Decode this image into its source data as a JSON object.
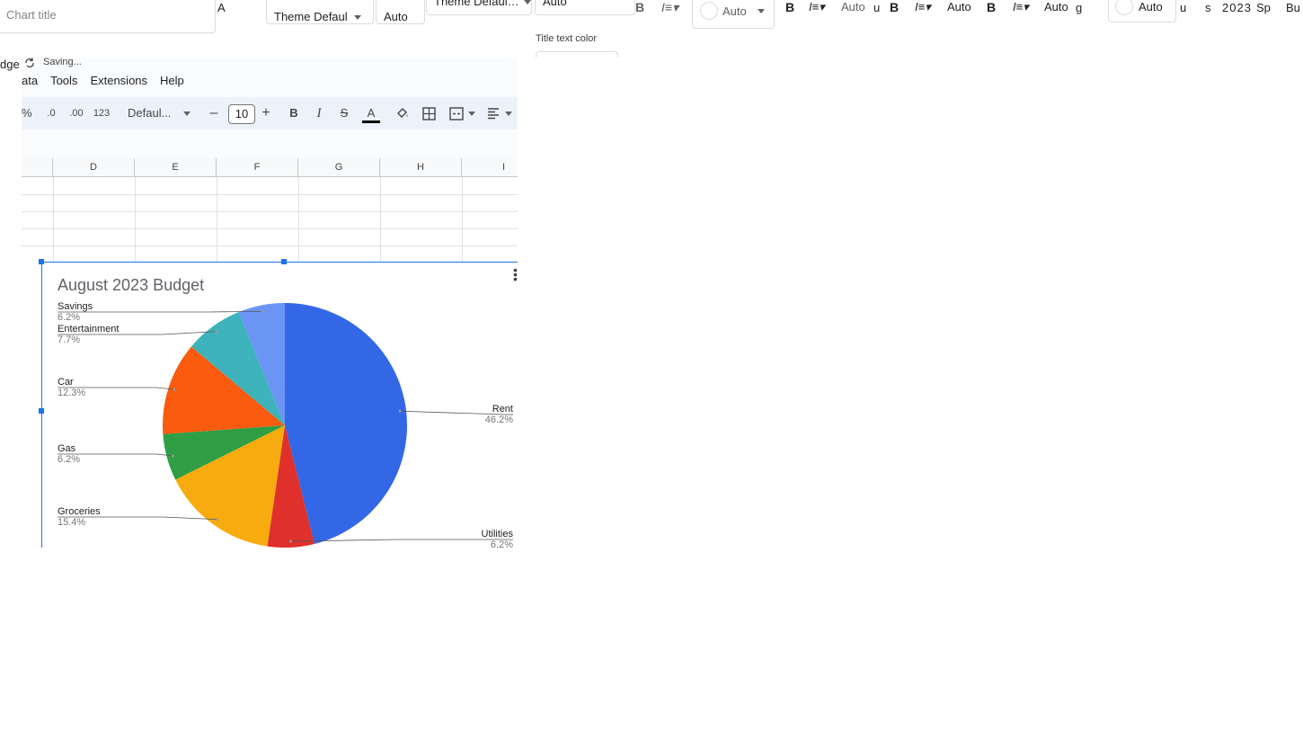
{
  "editor_strip": {
    "chart_title_placeholder": "Chart title",
    "text_a": "A",
    "theme_default_1": "Theme Defaul",
    "auto_1": "Auto",
    "theme_default_2": "Theme Defaul…",
    "auto_2": "Auto",
    "bold": "B",
    "auto_circle": "Auto",
    "auto_3": "Auto",
    "auto_4": "Auto",
    "auto_5": "Auto",
    "auto_6": "Auto",
    "frag_u1": "u",
    "frag_u2": "u",
    "frag_g": "g",
    "frag_st": "s",
    "frag_2023": "2023",
    "frag_sp": "Sp",
    "frag_bu": "Bu",
    "title_text_color_label": "Title text color"
  },
  "sheet": {
    "doc_title_fragment": "dge",
    "saving": "Saving...",
    "menu": [
      "ata",
      "Tools",
      "Extensions",
      "Help"
    ],
    "toolbar": {
      "percent": "%",
      "dec_decrease": ".0",
      "dec_increase": ".00",
      "number_format": "123",
      "font": "Defaul...",
      "minus": "–",
      "font_size": "10",
      "plus": "+",
      "bold": "B",
      "italic": "I",
      "strike": "S",
      "text_color": "A"
    },
    "columns": [
      "D",
      "E",
      "F",
      "G",
      "H",
      "I"
    ]
  },
  "colors": {
    "accent": "#1a73e8",
    "rent": "#3367e6",
    "utilities": "#e0302c",
    "groceries": "#f7ab0e",
    "gas": "#2f9e44",
    "car": "#fa5b0f",
    "entertainment": "#3db3bb",
    "savings": "#6a95f5"
  },
  "chart_data": {
    "type": "pie",
    "title": "August 2023 Budget",
    "slices": [
      {
        "label": "Rent",
        "percent": 46.2,
        "pct_text": "46.2%",
        "color": "#3367e6"
      },
      {
        "label": "Utilities",
        "percent": 6.2,
        "pct_text": "6.2%",
        "color": "#e0302c"
      },
      {
        "label": "Groceries",
        "percent": 15.4,
        "pct_text": "15.4%",
        "color": "#f7ab0e"
      },
      {
        "label": "Gas",
        "percent": 6.2,
        "pct_text": "6.2%",
        "color": "#2f9e44"
      },
      {
        "label": "Car",
        "percent": 12.3,
        "pct_text": "12.3%",
        "color": "#fa5b0f"
      },
      {
        "label": "Entertainment",
        "percent": 7.7,
        "pct_text": "7.7%",
        "color": "#3db3bb"
      },
      {
        "label": "Savings",
        "percent": 6.2,
        "pct_text": "6.2%",
        "color": "#6a95f5"
      }
    ],
    "legend": "labeled"
  }
}
